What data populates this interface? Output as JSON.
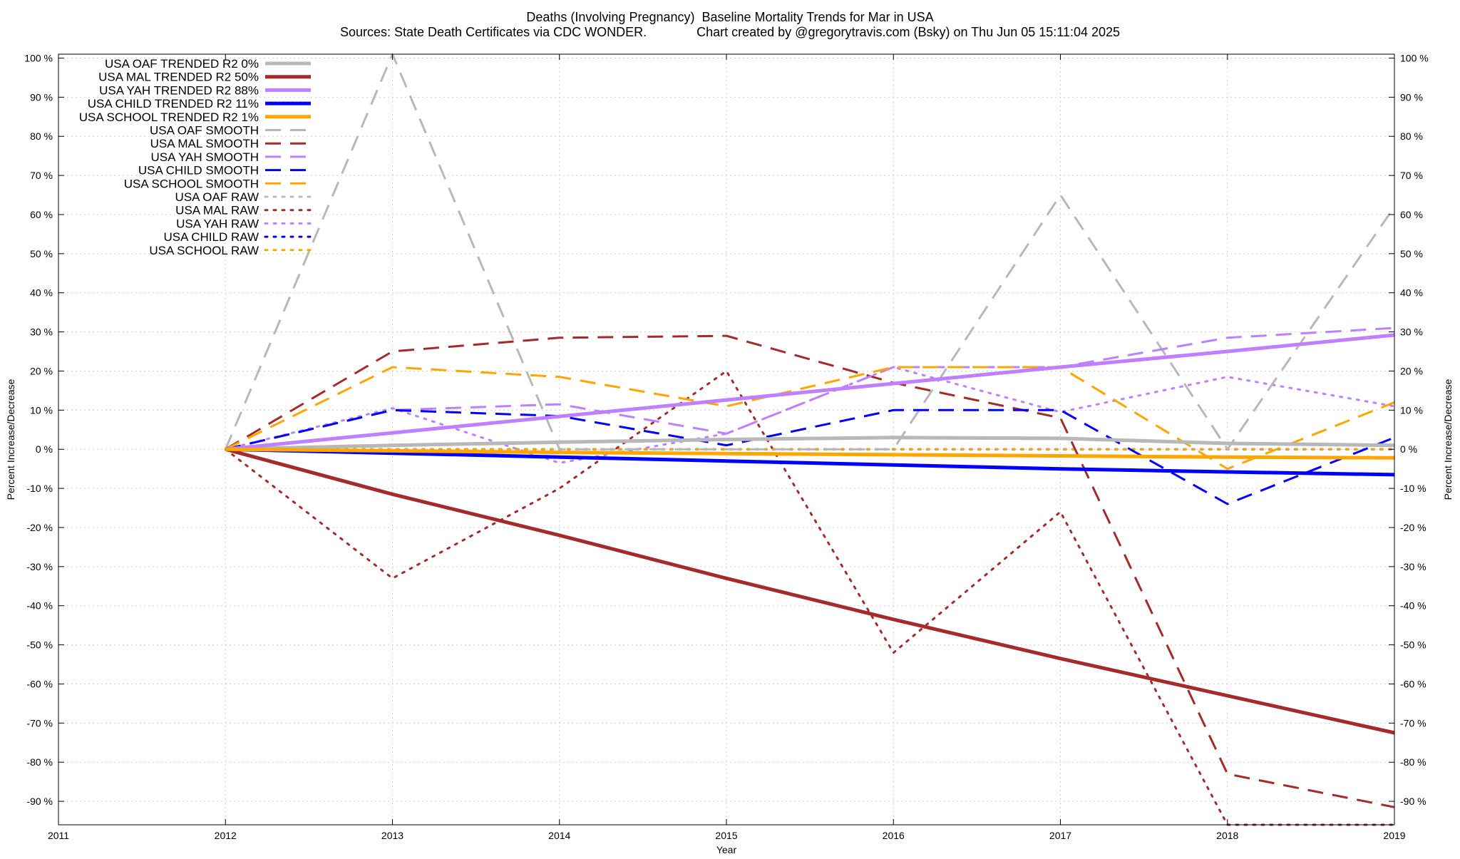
{
  "title_line1": "Deaths (Involving Pregnancy)  Baseline Mortality Trends for Mar in USA",
  "title_line2": "Sources: State Death Certificates via CDC WONDER.              Chart created by @gregorytravis.com (Bsky) on Thu Jun 05 15:11:04 2025",
  "chart_data": {
    "type": "line",
    "xlabel": "Year",
    "ylabel_left": "Percent Increase/Decrease",
    "ylabel_right": "Percent Increase/Decrease",
    "xlim": [
      2011,
      2019
    ],
    "ylim": [
      -96,
      101
    ],
    "x_ticks": [
      "2011",
      "2012",
      "2013",
      "2014",
      "2015",
      "2016",
      "2017",
      "2018",
      "2019"
    ],
    "y_ticks_left": [
      "100 %",
      "90 %",
      "80 %",
      "70 %",
      "60 %",
      "50 %",
      "40 %",
      "30 %",
      "20 %",
      "10 %",
      "0 %",
      "-10 %",
      "-20 %",
      "-30 %",
      "-40 %",
      "-50 %",
      "-60 %",
      "-70 %",
      "-80 %",
      "-90 %"
    ],
    "y_ticks_right": [
      "100 %",
      "90 %",
      "80 %",
      "70 %",
      "60 %",
      "50 %",
      "40 %",
      "30 %",
      "20 %",
      "10 %",
      "0 %",
      "-10 %",
      "-20 %",
      "-30 %",
      "-40 %",
      "-50 %",
      "-60 %",
      "-70 %",
      "-80 %",
      "-90 %"
    ],
    "grid": true,
    "legend_position": "top-left",
    "x": [
      2012,
      2013,
      2014,
      2015,
      2016,
      2017,
      2018,
      2019
    ],
    "series": [
      {
        "name": "USA OAF TRENDED R2   0%",
        "style": "solid",
        "color": "#b8b8b8",
        "values": [
          0,
          1.0,
          1.8,
          2.5,
          3.0,
          2.8,
          1.5,
          1.0
        ]
      },
      {
        "name": "USA MAL TRENDED R2  50%",
        "style": "solid",
        "color": "#a52a2a",
        "values": [
          0,
          -11.5,
          -22.0,
          -33.0,
          -43.5,
          -53.5,
          -63.0,
          -72.5
        ]
      },
      {
        "name": "USA YAH TRENDED R2  88%",
        "style": "solid",
        "color": "#bf7fff",
        "values": [
          0,
          4.2,
          8.4,
          12.6,
          16.8,
          21.0,
          25.0,
          29.2
        ]
      },
      {
        "name": "USA CHILD TRENDED R2  11%",
        "style": "solid",
        "color": "#0000ff",
        "values": [
          0,
          -1.0,
          -2.0,
          -3.0,
          -4.0,
          -5.0,
          -5.8,
          -6.5
        ]
      },
      {
        "name": "USA SCHOOL TRENDED R2   1%",
        "style": "solid",
        "color": "#ffa500",
        "values": [
          0,
          -0.4,
          -0.8,
          -1.1,
          -1.4,
          -1.7,
          -2.0,
          -2.2
        ]
      },
      {
        "name": "USA OAF SMOOTH",
        "style": "dashed",
        "color": "#b8b8b8",
        "values": [
          0,
          101,
          0,
          0,
          0,
          65,
          0,
          62
        ]
      },
      {
        "name": "USA MAL SMOOTH",
        "style": "dashed",
        "color": "#a52a2a",
        "values": [
          0,
          25,
          28.5,
          29,
          17,
          8,
          -83,
          -91.5
        ]
      },
      {
        "name": "USA YAH SMOOTH",
        "style": "dashed",
        "color": "#bf7fff",
        "values": [
          0,
          10,
          11.5,
          4,
          21,
          21,
          28.5,
          31
        ]
      },
      {
        "name": "USA CHILD SMOOTH",
        "style": "dashed",
        "color": "#0000ff",
        "values": [
          0,
          10,
          8.5,
          1,
          10,
          10,
          -14,
          3
        ]
      },
      {
        "name": "USA SCHOOL SMOOTH",
        "style": "dashed",
        "color": "#ffa500",
        "values": [
          0,
          21,
          18.5,
          11,
          21,
          21,
          -5,
          12
        ]
      },
      {
        "name": "USA OAF RAW",
        "style": "dotted",
        "color": "#b8b8b8",
        "values": [
          0,
          0,
          0,
          0,
          0,
          0,
          0,
          0
        ]
      },
      {
        "name": "USA MAL RAW",
        "style": "dotted",
        "color": "#a52a2a",
        "values": [
          0,
          -33,
          -10,
          20,
          -52,
          -16,
          -96,
          -96
        ]
      },
      {
        "name": "USA YAH RAW",
        "style": "dotted",
        "color": "#bf7fff",
        "values": [
          0,
          10.5,
          -3.5,
          4,
          21,
          9.5,
          18.5,
          11
        ]
      },
      {
        "name": "USA CHILD RAW",
        "style": "dotted",
        "color": "#0000ff",
        "values": [
          0,
          0,
          0,
          0,
          0,
          0,
          0,
          0
        ]
      },
      {
        "name": "USA SCHOOL RAW",
        "style": "dotted",
        "color": "#ffa500",
        "values": [
          0,
          0,
          0,
          0,
          0,
          0,
          0,
          0
        ]
      }
    ]
  }
}
